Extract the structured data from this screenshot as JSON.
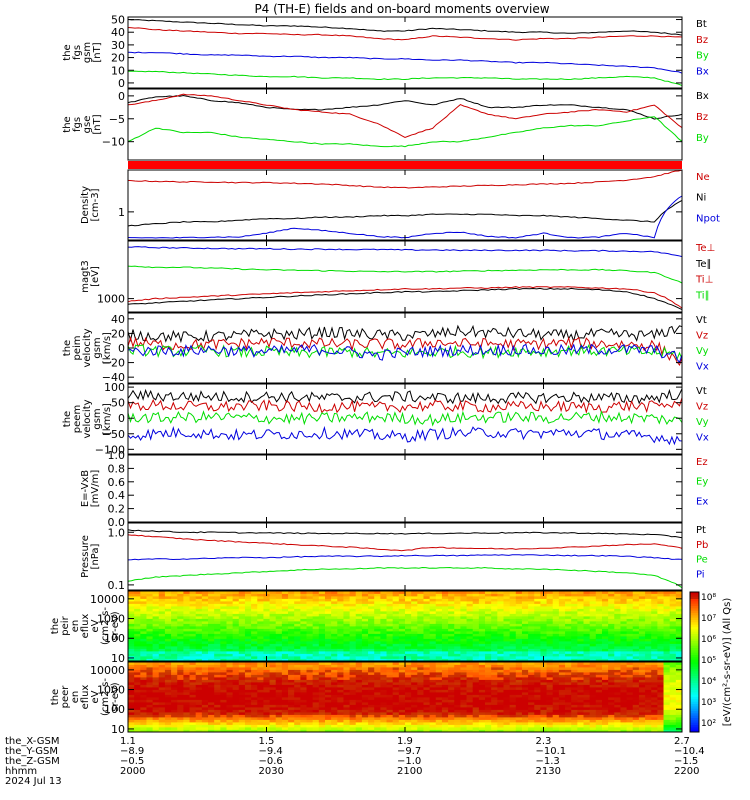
{
  "title": "P4 (TH-E) fields and on-board moments overview",
  "colors": {
    "black": "#000000",
    "red": "#cc0000",
    "green": "#00dd00",
    "blue": "#0000dd",
    "bar": "#ff0000"
  },
  "chart_data": [
    {
      "type": "line",
      "ylabel_lines": [
        "the",
        "fgs",
        "gsm",
        "[nT]"
      ],
      "yticks": [
        {
          "value": 0,
          "label": "0"
        },
        {
          "value": 10,
          "label": "10"
        },
        {
          "value": 20,
          "label": "20"
        },
        {
          "value": 30,
          "label": "30"
        },
        {
          "value": 40,
          "label": "40"
        },
        {
          "value": 50,
          "label": "50"
        }
      ],
      "ylim": [
        -4,
        52
      ],
      "scale": "linear",
      "legend": [
        {
          "label": "Bt",
          "color": "#000000"
        },
        {
          "label": "Bz",
          "color": "#cc0000"
        },
        {
          "label": "By",
          "color": "#00dd00"
        },
        {
          "label": "Bx",
          "color": "#0000dd"
        }
      ],
      "series": [
        {
          "color": "#000000",
          "values": [
            50,
            49,
            48,
            47,
            46,
            45,
            45,
            44,
            43,
            41,
            41,
            43,
            42,
            41,
            40,
            40,
            39,
            40,
            41,
            40,
            38
          ]
        },
        {
          "color": "#cc0000",
          "values": [
            44,
            42,
            41,
            40,
            39,
            39,
            38,
            38,
            37,
            35,
            34,
            37,
            36,
            35,
            34,
            35,
            35,
            36,
            37,
            37,
            36
          ]
        },
        {
          "color": "#00dd00",
          "values": [
            9,
            9,
            8,
            7,
            6,
            5,
            5,
            4,
            4,
            3,
            3,
            4,
            4,
            4,
            3,
            3,
            3,
            4,
            5,
            4,
            -2
          ]
        },
        {
          "color": "#0000dd",
          "values": [
            24,
            24,
            23,
            22,
            22,
            21,
            21,
            20,
            20,
            19,
            19,
            18,
            18,
            17,
            16,
            16,
            15,
            14,
            13,
            12,
            8
          ]
        }
      ]
    },
    {
      "type": "line",
      "ylabel_lines": [
        "the",
        "fgs",
        "gse",
        "[nT]"
      ],
      "yticks": [
        {
          "value": -10,
          "label": "−10"
        },
        {
          "value": -5,
          "label": "−5"
        },
        {
          "value": 0,
          "label": "0"
        }
      ],
      "ylim": [
        -14,
        1.5
      ],
      "scale": "linear",
      "legend": [
        {
          "label": "Bx",
          "color": "#000000"
        },
        {
          "label": "Bz",
          "color": "#cc0000"
        },
        {
          "label": "By",
          "color": "#00dd00"
        }
      ],
      "series": [
        {
          "color": "#000000",
          "values": [
            -1.5,
            -0.2,
            0,
            -1,
            -1.5,
            -2.5,
            -3,
            -3,
            -2.5,
            -2,
            -1,
            -2,
            -0.5,
            -2.5,
            -2.5,
            -2,
            -2,
            -2.5,
            -3,
            -5,
            -4
          ]
        },
        {
          "color": "#cc0000",
          "values": [
            -2,
            -1,
            0.3,
            0,
            -1,
            -2,
            -3,
            -3.5,
            -4,
            -6,
            -9,
            -7,
            -2,
            -4,
            -5,
            -4,
            -3.5,
            -3,
            -3.5,
            -2,
            -7
          ]
        },
        {
          "color": "#00dd00",
          "values": [
            -10,
            -7,
            -8,
            -8,
            -9,
            -9.5,
            -10,
            -10.5,
            -10.5,
            -11,
            -11,
            -10,
            -10,
            -9,
            -8,
            -7,
            -6.5,
            -6.5,
            -5.5,
            -4.5,
            -10
          ]
        }
      ]
    },
    {
      "type": "line",
      "ylabel_lines": [
        "Density",
        "[cm-3]"
      ],
      "yticks": [
        {
          "value": 1,
          "label": "1"
        }
      ],
      "ylim": [
        0.3,
        6
      ],
      "scale": "log",
      "legend": [
        {
          "label": "Ne",
          "color": "#cc0000"
        },
        {
          "label": "Ni",
          "color": "#000000"
        },
        {
          "label": "Npot",
          "color": "#0000dd"
        }
      ],
      "series": [
        {
          "color": "#cc0000",
          "values": [
            3.8,
            3.7,
            3.6,
            3.6,
            3.5,
            3.5,
            3.4,
            3.3,
            3.1,
            2.9,
            2.8,
            2.9,
            3,
            3.1,
            3.2,
            3.3,
            3.4,
            3.6,
            3.9,
            4.5,
            6
          ]
        },
        {
          "color": "#000000",
          "values": [
            0.55,
            0.6,
            0.65,
            0.65,
            0.7,
            0.75,
            0.75,
            0.8,
            0.8,
            0.85,
            0.85,
            0.9,
            0.9,
            0.9,
            0.85,
            0.85,
            0.8,
            0.75,
            0.7,
            0.65,
            1.6
          ]
        },
        {
          "color": "#0000dd",
          "values": [
            0.33,
            0.33,
            0.33,
            0.34,
            0.34,
            0.4,
            0.5,
            0.45,
            0.4,
            0.35,
            0.33,
            0.4,
            0.42,
            0.35,
            0.33,
            0.4,
            0.33,
            0.34,
            0.4,
            0.33,
            2
          ]
        }
      ]
    },
    {
      "type": "line",
      "ylabel_lines": [
        "magt3",
        "[eV]"
      ],
      "yticks": [
        {
          "value": 1000,
          "label": "1000"
        }
      ],
      "ylim": [
        600,
        9000
      ],
      "scale": "log",
      "legend": [
        {
          "label": "Te⊥",
          "color": "#cc0000"
        },
        {
          "label": "Te∥",
          "color": "#000000"
        },
        {
          "label": "Ti⊥",
          "color": "#cc0000"
        },
        {
          "label": "Ti∥",
          "color": "#00dd00"
        }
      ],
      "series": [
        {
          "color": "#0000dd",
          "values": [
            7200,
            7000,
            6900,
            6800,
            6700,
            6700,
            6600,
            6600,
            6500,
            6500,
            6400,
            6400,
            6300,
            6300,
            6300,
            6300,
            6200,
            6200,
            6100,
            6000,
            5000
          ]
        },
        {
          "color": "#00dd00",
          "values": [
            3500,
            3300,
            3300,
            3200,
            3100,
            3000,
            2950,
            2900,
            2850,
            2800,
            2800,
            2800,
            2850,
            2900,
            2950,
            3000,
            3000,
            3000,
            2900,
            2700,
            1800
          ]
        },
        {
          "color": "#cc0000",
          "values": [
            900,
            1000,
            1050,
            1100,
            1150,
            1200,
            1250,
            1300,
            1350,
            1400,
            1450,
            1450,
            1500,
            1500,
            1550,
            1550,
            1550,
            1500,
            1450,
            1250,
            700
          ]
        },
        {
          "color": "#000000",
          "values": [
            800,
            850,
            900,
            950,
            1000,
            1050,
            1100,
            1150,
            1200,
            1250,
            1300,
            1300,
            1350,
            1400,
            1450,
            1450,
            1450,
            1400,
            1300,
            1000,
            650
          ]
        }
      ]
    },
    {
      "type": "line",
      "ylabel_lines": [
        "the",
        "peim",
        "velocity",
        "gsm",
        "[km/s]"
      ],
      "yticks": [
        {
          "value": -40,
          "label": "−40"
        },
        {
          "value": -20,
          "label": "−20"
        },
        {
          "value": 0,
          "label": "0"
        },
        {
          "value": 20,
          "label": "20"
        },
        {
          "value": 40,
          "label": "40"
        }
      ],
      "ylim": [
        -48,
        48
      ],
      "scale": "linear",
      "noise": true,
      "legend": [
        {
          "label": "Vt",
          "color": "#000000"
        },
        {
          "label": "Vz",
          "color": "#cc0000"
        },
        {
          "label": "Vy",
          "color": "#00dd00"
        },
        {
          "label": "Vx",
          "color": "#0000dd"
        }
      ],
      "series": [
        {
          "color": "#000000",
          "values": [
            18,
            17,
            15,
            16,
            17,
            20,
            18,
            22,
            20,
            18,
            17,
            19,
            23,
            21,
            20,
            18,
            17,
            19,
            18,
            17,
            30
          ]
        },
        {
          "color": "#cc0000",
          "values": [
            8,
            5,
            4,
            5,
            6,
            8,
            7,
            6,
            5,
            6,
            4,
            8,
            6,
            6,
            5,
            6,
            7,
            6,
            5,
            4,
            -20
          ]
        },
        {
          "color": "#00dd00",
          "values": [
            -2,
            -4,
            -5,
            -3,
            -6,
            -5,
            -7,
            -6,
            -5,
            -8,
            -7,
            -6,
            -5,
            -6,
            -4,
            -5,
            -3,
            -4,
            -5,
            -6,
            -10
          ]
        },
        {
          "color": "#0000dd",
          "values": [
            -5,
            -3,
            -4,
            -2,
            -4,
            -5,
            -3,
            -2,
            -5,
            -10,
            -6,
            -4,
            -3,
            -3,
            -2,
            -4,
            -3,
            -2,
            -2,
            -3,
            -15
          ]
        }
      ]
    },
    {
      "type": "line",
      "ylabel_lines": [
        "the",
        "peem",
        "velocity",
        "gsm",
        "[km/s]"
      ],
      "yticks": [
        {
          "value": -100,
          "label": "−100"
        },
        {
          "value": -50,
          "label": "−50"
        },
        {
          "value": 0,
          "label": "0"
        },
        {
          "value": 50,
          "label": "50"
        },
        {
          "value": 100,
          "label": "100"
        }
      ],
      "ylim": [
        -115,
        110
      ],
      "scale": "linear",
      "noise": true,
      "legend": [
        {
          "label": "Vt",
          "color": "#000000"
        },
        {
          "label": "Vz",
          "color": "#cc0000"
        },
        {
          "label": "Vy",
          "color": "#00dd00"
        },
        {
          "label": "Vx",
          "color": "#0000dd"
        }
      ],
      "series": [
        {
          "color": "#000000",
          "values": [
            75,
            72,
            70,
            70,
            68,
            70,
            68,
            65,
            66,
            68,
            70,
            66,
            65,
            64,
            65,
            66,
            68,
            65,
            64,
            66,
            80
          ]
        },
        {
          "color": "#cc0000",
          "values": [
            40,
            42,
            38,
            36,
            38,
            40,
            38,
            36,
            37,
            35,
            38,
            40,
            38,
            36,
            37,
            38,
            36,
            35,
            40,
            38,
            50
          ]
        },
        {
          "color": "#00dd00",
          "values": [
            5,
            0,
            3,
            4,
            2,
            0,
            -2,
            0,
            2,
            4,
            0,
            -5,
            2,
            3,
            4,
            0,
            3,
            5,
            2,
            0,
            -10
          ]
        },
        {
          "color": "#0000dd",
          "values": [
            -55,
            -50,
            -45,
            -50,
            -55,
            -52,
            -50,
            -48,
            -50,
            -55,
            -60,
            -50,
            -48,
            -45,
            -50,
            -48,
            -46,
            -50,
            -55,
            -60,
            -70
          ]
        }
      ]
    },
    {
      "type": "line",
      "ylabel_lines": [
        "E=-VxB",
        "[mV/m]"
      ],
      "yticks": [
        {
          "value": 0,
          "label": "0.0"
        },
        {
          "value": 0.2,
          "label": "0.2"
        },
        {
          "value": 0.4,
          "label": "0.4"
        },
        {
          "value": 0.6,
          "label": "0.6"
        },
        {
          "value": 0.8,
          "label": "0.8"
        },
        {
          "value": 1.0,
          "label": "1.0"
        }
      ],
      "ylim": [
        0,
        1.0
      ],
      "scale": "linear",
      "legend": [
        {
          "label": "Ez",
          "color": "#cc0000"
        },
        {
          "label": "Ey",
          "color": "#00dd00"
        },
        {
          "label": "Ex",
          "color": "#0000dd"
        }
      ],
      "series": []
    },
    {
      "type": "line",
      "ylabel_lines": [
        "Pressure",
        "[nPa]"
      ],
      "yticks": [
        {
          "value": 0.1,
          "label": "0.1"
        },
        {
          "value": 1.0,
          "label": "1.0"
        }
      ],
      "ylim": [
        0.08,
        1.5
      ],
      "scale": "log",
      "legend": [
        {
          "label": "Pt",
          "color": "#000000"
        },
        {
          "label": "Pb",
          "color": "#cc0000"
        },
        {
          "label": "Pe",
          "color": "#00dd00"
        },
        {
          "label": "Pi",
          "color": "#0000dd"
        }
      ],
      "series": [
        {
          "color": "#000000",
          "values": [
            1.1,
            1.05,
            1.0,
            1.0,
            0.98,
            0.97,
            0.96,
            0.95,
            0.95,
            0.95,
            0.94,
            0.95,
            0.96,
            0.97,
            0.98,
            0.98,
            0.97,
            0.95,
            0.93,
            0.9,
            0.8
          ]
        },
        {
          "color": "#cc0000",
          "values": [
            0.9,
            0.82,
            0.75,
            0.7,
            0.66,
            0.62,
            0.58,
            0.55,
            0.52,
            0.48,
            0.45,
            0.52,
            0.5,
            0.49,
            0.48,
            0.5,
            0.52,
            0.55,
            0.58,
            0.6,
            0.5
          ]
        },
        {
          "color": "#00dd00",
          "values": [
            0.12,
            0.14,
            0.15,
            0.16,
            0.17,
            0.18,
            0.19,
            0.2,
            0.2,
            0.21,
            0.21,
            0.21,
            0.21,
            0.21,
            0.2,
            0.2,
            0.19,
            0.18,
            0.17,
            0.15,
            0.09
          ]
        },
        {
          "color": "#0000dd",
          "values": [
            0.3,
            0.31,
            0.31,
            0.32,
            0.33,
            0.33,
            0.34,
            0.35,
            0.35,
            0.35,
            0.36,
            0.36,
            0.36,
            0.37,
            0.37,
            0.37,
            0.36,
            0.36,
            0.35,
            0.33,
            0.3
          ]
        }
      ]
    },
    {
      "type": "heatmap",
      "ylabel_lines": [
        "the",
        "peir",
        "en",
        "eflux",
        "eV",
        "(cm2-s-",
        "sr-eV)"
      ],
      "yticks": [
        {
          "value": 10,
          "label": "10"
        },
        {
          "value": 100,
          "label": "100"
        },
        {
          "value": 1000,
          "label": "1000"
        },
        {
          "value": 10000,
          "label": "10000"
        }
      ],
      "ylim": [
        7,
        25000
      ],
      "scale": "log"
    },
    {
      "type": "heatmap",
      "ylabel_lines": [
        "the",
        "peer",
        "en",
        "eflux",
        "eV",
        "(cm2-s-",
        "sr-eV)"
      ],
      "yticks": [
        {
          "value": 10,
          "label": "10"
        },
        {
          "value": 100,
          "label": "100"
        },
        {
          "value": 1000,
          "label": "1000"
        },
        {
          "value": 10000,
          "label": "10000"
        }
      ],
      "ylim": [
        7,
        25000
      ],
      "scale": "log"
    }
  ],
  "colorbar": {
    "ticks": [
      "10⁸",
      "10⁷",
      "10⁶",
      "10⁵",
      "10⁴",
      "10³",
      "10²"
    ],
    "label": "[eV/(cm²-s-sr-eV)] (All Qs)"
  },
  "x_axis": {
    "row_labels": [
      "the_X-GSM",
      "the_Y-GSM",
      "the_Z-GSM",
      "hhmm",
      "2024 Jul 13"
    ],
    "columns": [
      {
        "x": "1.1",
        "y": "−8.9",
        "z": "−0.5",
        "time": "2000"
      },
      {
        "x": "1.5",
        "y": "−9.4",
        "z": "−0.6",
        "time": "2030"
      },
      {
        "x": "1.9",
        "y": "−9.7",
        "z": "−1.0",
        "time": "2100"
      },
      {
        "x": "2.3",
        "y": "−10.1",
        "z": "−1.3",
        "time": "2130"
      },
      {
        "x": "2.7",
        "y": "−10.4",
        "z": "−1.5",
        "time": "2200"
      }
    ]
  }
}
